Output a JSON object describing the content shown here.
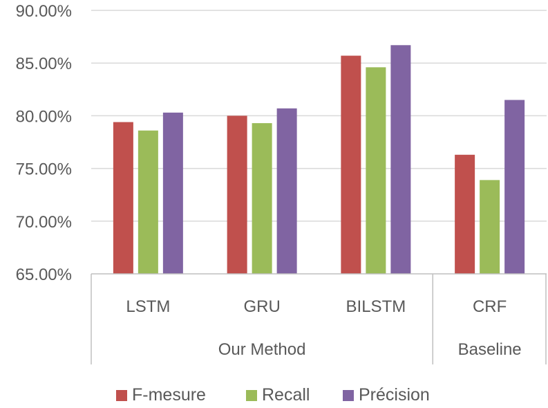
{
  "chart_data": {
    "type": "bar",
    "categories": [
      "LSTM",
      "GRU",
      "BILSTM",
      "CRF"
    ],
    "groups": [
      {
        "label": "Our Method",
        "categories": [
          "LSTM",
          "GRU",
          "BILSTM"
        ]
      },
      {
        "label": "Baseline",
        "categories": [
          "CRF"
        ]
      }
    ],
    "series": [
      {
        "name": "F-mesure",
        "color": "#c0504d",
        "values": [
          79.4,
          80.0,
          85.7,
          76.3
        ]
      },
      {
        "name": "Recall",
        "color": "#9bbb59",
        "values": [
          78.6,
          79.3,
          84.6,
          73.9
        ]
      },
      {
        "name": "Précision",
        "color": "#8064a2",
        "values": [
          80.3,
          80.7,
          86.7,
          81.5
        ]
      }
    ],
    "ylim": [
      65,
      90
    ],
    "yticks": [
      "65.00%",
      "70.00%",
      "75.00%",
      "80.00%",
      "85.00%",
      "90.00%"
    ],
    "ytick_values": [
      65,
      70,
      75,
      80,
      85,
      90
    ],
    "grid": true,
    "legend_position": "bottom"
  }
}
